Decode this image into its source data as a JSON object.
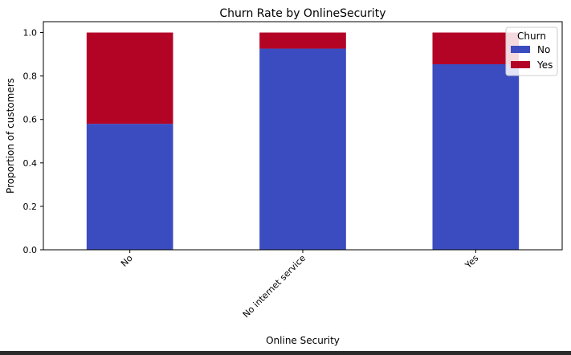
{
  "chart_data": {
    "type": "bar",
    "stacked": true,
    "title": "Churn Rate by OnlineSecurity",
    "xlabel": "Online Security",
    "ylabel": "Proportion of customers",
    "categories": [
      "No",
      "No internet service",
      "Yes"
    ],
    "series": [
      {
        "name": "No",
        "values": [
          0.58,
          0.926,
          0.854
        ],
        "color": "#3b4cc0"
      },
      {
        "name": "Yes",
        "values": [
          0.42,
          0.074,
          0.146
        ],
        "color": "#b40426"
      }
    ],
    "ylim": [
      0,
      1.05
    ],
    "yticks": [
      0.0,
      0.2,
      0.4,
      0.6,
      0.8,
      1.0
    ],
    "ytick_labels": [
      "0.0",
      "0.2",
      "0.4",
      "0.6",
      "0.8",
      "1.0"
    ],
    "grid": false,
    "legend": {
      "title": "Churn",
      "placement": "top-right",
      "entries": [
        "No",
        "Yes"
      ]
    }
  }
}
